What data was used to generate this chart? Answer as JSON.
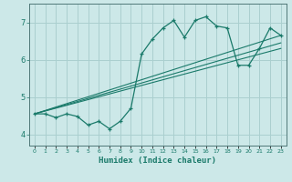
{
  "xlabel": "Humidex (Indice chaleur)",
  "ylabel": "",
  "background_color": "#cce8e8",
  "grid_color": "#aacfcf",
  "line_color": "#1a7a6a",
  "xlim": [
    -0.5,
    23.5
  ],
  "ylim": [
    3.7,
    7.5
  ],
  "yticks": [
    4,
    5,
    6,
    7
  ],
  "xticks": [
    0,
    1,
    2,
    3,
    4,
    5,
    6,
    7,
    8,
    9,
    10,
    11,
    12,
    13,
    14,
    15,
    16,
    17,
    18,
    19,
    20,
    21,
    22,
    23
  ],
  "main_x": [
    0,
    1,
    2,
    3,
    4,
    5,
    6,
    7,
    8,
    9,
    10,
    11,
    12,
    13,
    14,
    15,
    16,
    17,
    18,
    19,
    20,
    21,
    22,
    23
  ],
  "main_y": [
    4.55,
    4.55,
    4.45,
    4.55,
    4.48,
    4.25,
    4.35,
    4.15,
    4.35,
    4.7,
    6.15,
    6.55,
    6.85,
    7.05,
    6.6,
    7.05,
    7.15,
    6.9,
    6.85,
    5.85,
    5.85,
    6.3,
    6.85,
    6.65
  ],
  "line1_x": [
    0,
    23
  ],
  "line1_y": [
    4.55,
    6.65
  ],
  "line2_x": [
    0,
    23
  ],
  "line2_y": [
    4.55,
    6.3
  ],
  "line3_x": [
    0,
    23
  ],
  "line3_y": [
    4.55,
    6.45
  ]
}
